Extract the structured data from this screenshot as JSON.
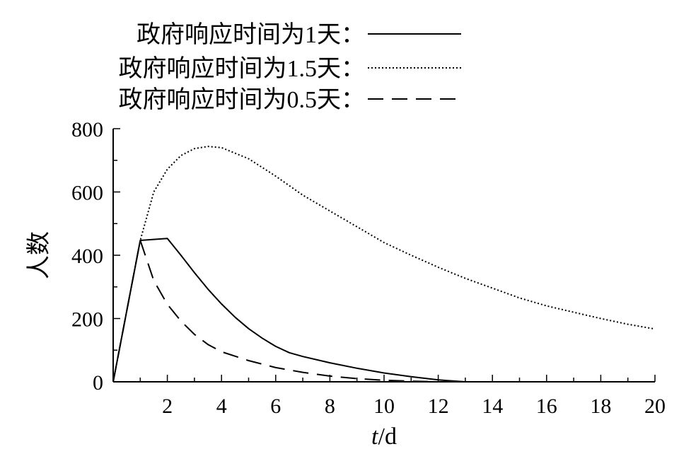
{
  "chart_data": {
    "type": "line",
    "xlabel": "t/d",
    "ylabel": "人数",
    "xlim": [
      0,
      20
    ],
    "ylim": [
      0,
      800
    ],
    "xticks": [
      2,
      4,
      6,
      8,
      10,
      12,
      14,
      16,
      18,
      20
    ],
    "yticks": [
      0,
      200,
      400,
      600,
      800
    ],
    "grid": false,
    "legend_position": "top",
    "series": [
      {
        "name": "政府响应时间为1天：",
        "style": "solid",
        "color": "#000000",
        "x": [
          0,
          1,
          2,
          2.5,
          3,
          3.5,
          4,
          4.5,
          5,
          5.5,
          6,
          6.5,
          7,
          8,
          9,
          10,
          11,
          12,
          13
        ],
        "y": [
          0,
          447,
          453,
          400,
          345,
          293,
          246,
          204,
          168,
          138,
          112,
          92,
          80,
          60,
          43,
          28,
          16,
          6,
          0
        ]
      },
      {
        "name": "政府响应时间为1.5天：",
        "style": "dotted",
        "color": "#000000",
        "x": [
          0,
          1,
          1.5,
          2,
          2.5,
          3,
          3.5,
          4,
          5,
          6,
          7,
          8,
          9,
          10,
          11,
          12,
          13,
          14,
          15,
          16,
          17,
          18,
          19,
          20
        ],
        "y": [
          0,
          447,
          600,
          672,
          715,
          737,
          744,
          740,
          705,
          650,
          590,
          540,
          490,
          440,
          400,
          362,
          327,
          296,
          265,
          240,
          220,
          200,
          182,
          167
        ]
      },
      {
        "name": "政府响应时间为0.5天：",
        "style": "dashed",
        "color": "#000000",
        "x": [
          0,
          1,
          1.5,
          2,
          2.5,
          3,
          3.5,
          4,
          5,
          6,
          7,
          8,
          9,
          10,
          11,
          12
        ],
        "y": [
          0,
          447,
          320,
          245,
          192,
          150,
          118,
          95,
          67,
          45,
          30,
          18,
          10,
          5,
          2,
          0
        ]
      }
    ]
  }
}
